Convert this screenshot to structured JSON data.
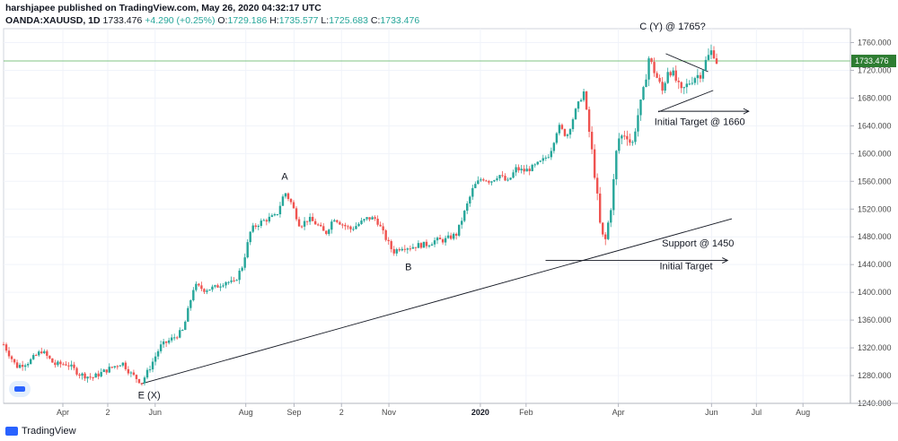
{
  "header": {
    "author_line": "harshjapee published on TradingView.com, May 26, 2020 04:32:17 UTC",
    "symbol": "OANDA:XAUUSD, 1D",
    "last": "1733.476",
    "change": "+4.290 (+0.25%)",
    "o_label": "O:",
    "o": "1729.186",
    "h_label": "H:",
    "h": "1735.577",
    "l_label": "L:",
    "l": "1725.683",
    "c_label": "C:",
    "c": "1733.476"
  },
  "footer": {
    "logo_text": "TradingView"
  },
  "colors": {
    "up": "#26a69a",
    "down": "#ef5350",
    "price_line": "#4caf50",
    "price_badge": "#2e7d32",
    "badge_text": "#ffffff"
  },
  "icons": {
    "chart_logo": "tradingview-logo-icon"
  },
  "chart_data": {
    "type": "candlestick",
    "symbol": "OANDA:XAUUSD",
    "interval": "1D",
    "ylim": [
      1240,
      1780
    ],
    "y_ticks": [
      "1760.000",
      "1720.000",
      "1680.000",
      "1640.000",
      "1600.000",
      "1560.000",
      "1520.000",
      "1480.000",
      "1440.000",
      "1400.000",
      "1360.000",
      "1320.000",
      "1280.000",
      "1240.000"
    ],
    "x_ticks": [
      {
        "label": "Apr",
        "t": 0.07
      },
      {
        "label": "2",
        "t": 0.123
      },
      {
        "label": "Jun",
        "t": 0.179
      },
      {
        "label": "Aug",
        "t": 0.286
      },
      {
        "label": "Sep",
        "t": 0.343
      },
      {
        "label": "2",
        "t": 0.399
      },
      {
        "label": "Nov",
        "t": 0.455
      },
      {
        "label": "2020",
        "t": 0.563,
        "bold": true
      },
      {
        "label": "Feb",
        "t": 0.617
      },
      {
        "label": "Apr",
        "t": 0.726
      },
      {
        "label": "Jun",
        "t": 0.836
      },
      {
        "label": "Jul",
        "t": 0.889
      },
      {
        "label": "Aug",
        "t": 0.944
      }
    ],
    "current_price": 1733.476,
    "current_price_label": "1733.476",
    "path": [
      [
        0.0,
        1325
      ],
      [
        0.015,
        1293
      ],
      [
        0.03,
        1300
      ],
      [
        0.045,
        1316
      ],
      [
        0.06,
        1296
      ],
      [
        0.075,
        1297
      ],
      [
        0.09,
        1282
      ],
      [
        0.105,
        1277
      ],
      [
        0.12,
        1287
      ],
      [
        0.14,
        1299
      ],
      [
        0.15,
        1283
      ],
      [
        0.163,
        1270
      ],
      [
        0.172,
        1290
      ],
      [
        0.185,
        1322
      ],
      [
        0.2,
        1334
      ],
      [
        0.212,
        1345
      ],
      [
        0.225,
        1410
      ],
      [
        0.237,
        1404
      ],
      [
        0.25,
        1407
      ],
      [
        0.262,
        1416
      ],
      [
        0.272,
        1413
      ],
      [
        0.282,
        1438
      ],
      [
        0.292,
        1490
      ],
      [
        0.302,
        1500
      ],
      [
        0.312,
        1506
      ],
      [
        0.322,
        1510
      ],
      [
        0.332,
        1545
      ],
      [
        0.34,
        1528
      ],
      [
        0.35,
        1496
      ],
      [
        0.36,
        1506
      ],
      [
        0.37,
        1498
      ],
      [
        0.38,
        1484
      ],
      [
        0.39,
        1508
      ],
      [
        0.4,
        1498
      ],
      [
        0.41,
        1491
      ],
      [
        0.42,
        1499
      ],
      [
        0.43,
        1507
      ],
      [
        0.44,
        1506
      ],
      [
        0.45,
        1481
      ],
      [
        0.46,
        1458
      ],
      [
        0.47,
        1466
      ],
      [
        0.48,
        1465
      ],
      [
        0.49,
        1468
      ],
      [
        0.5,
        1469
      ],
      [
        0.51,
        1475
      ],
      [
        0.52,
        1475
      ],
      [
        0.535,
        1484
      ],
      [
        0.545,
        1518
      ],
      [
        0.555,
        1552
      ],
      [
        0.565,
        1565
      ],
      [
        0.575,
        1560
      ],
      [
        0.585,
        1570
      ],
      [
        0.595,
        1558
      ],
      [
        0.605,
        1578
      ],
      [
        0.615,
        1575
      ],
      [
        0.625,
        1580
      ],
      [
        0.635,
        1588
      ],
      [
        0.645,
        1600
      ],
      [
        0.655,
        1640
      ],
      [
        0.665,
        1625
      ],
      [
        0.675,
        1660
      ],
      [
        0.685,
        1690
      ],
      [
        0.69,
        1645
      ],
      [
        0.695,
        1600
      ],
      [
        0.7,
        1550
      ],
      [
        0.705,
        1490
      ],
      [
        0.71,
        1470
      ],
      [
        0.718,
        1530
      ],
      [
        0.725,
        1620
      ],
      [
        0.735,
        1630
      ],
      [
        0.742,
        1610
      ],
      [
        0.748,
        1650
      ],
      [
        0.755,
        1685
      ],
      [
        0.762,
        1738
      ],
      [
        0.77,
        1714
      ],
      [
        0.778,
        1690
      ],
      [
        0.785,
        1724
      ],
      [
        0.792,
        1711
      ],
      [
        0.8,
        1688
      ],
      [
        0.808,
        1700
      ],
      [
        0.815,
        1710
      ],
      [
        0.823,
        1715
      ],
      [
        0.83,
        1735
      ],
      [
        0.837,
        1750
      ],
      [
        0.842,
        1733
      ]
    ],
    "trendlines": [
      {
        "t1": 0.162,
        "p1": 1268,
        "t2": 0.86,
        "p2": 1506
      },
      {
        "t1": 0.773,
        "p1": 1660,
        "t2": 0.838,
        "p2": 1691
      },
      {
        "t1": 0.782,
        "p1": 1744,
        "t2": 0.832,
        "p2": 1718
      }
    ],
    "arrows": [
      {
        "t1": 0.773,
        "t2": 0.88,
        "p": 1661
      },
      {
        "t1": 0.64,
        "t2": 0.855,
        "p": 1446
      }
    ],
    "annotations": [
      {
        "text": "C (Y) @ 1765?",
        "t": 0.79,
        "p": 1779
      },
      {
        "text": "Initial Target @ 1660",
        "t": 0.822,
        "p": 1641
      },
      {
        "text": "A",
        "t": 0.332,
        "p": 1562
      },
      {
        "text": "B",
        "t": 0.478,
        "p": 1432
      },
      {
        "text": "Support @ 1450",
        "t": 0.82,
        "p": 1466
      },
      {
        "text": "Initial Target",
        "t": 0.806,
        "p": 1433
      },
      {
        "text": "E (X)",
        "t": 0.172,
        "p": 1247
      }
    ]
  }
}
